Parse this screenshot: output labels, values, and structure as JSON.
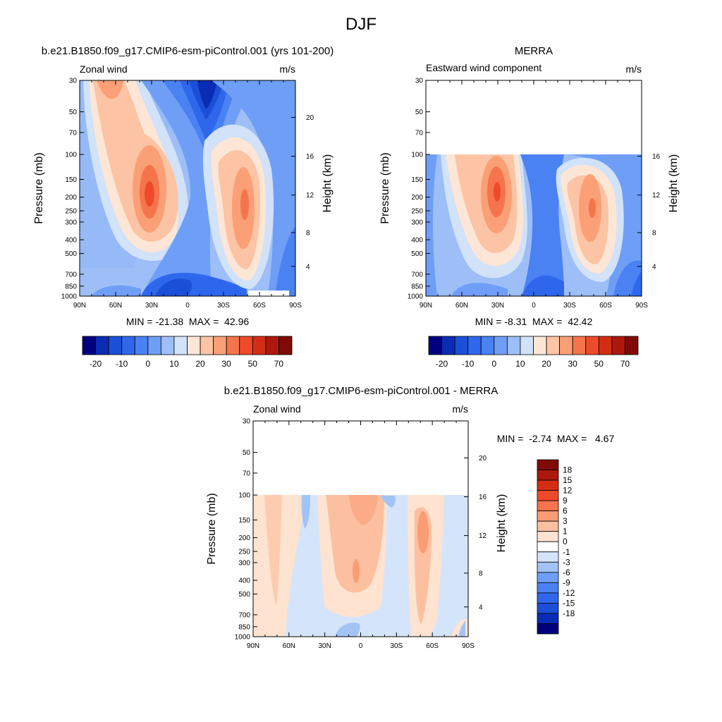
{
  "page_title": "DJF",
  "colors": {
    "model_obs_palette": [
      "#00007f",
      "#0a2cb5",
      "#1b4fd8",
      "#2f67ec",
      "#4a81f3",
      "#6f9ef7",
      "#9dbef7",
      "#d1e2f9",
      "#fde6d6",
      "#fcc3a4",
      "#fa9f76",
      "#f6744c",
      "#ee4a2a",
      "#d42d16",
      "#ae180c",
      "#7f0a07"
    ],
    "diff_palette": [
      "#00007f",
      "#0a2cb5",
      "#1b4fd8",
      "#2f67ec",
      "#4a81f3",
      "#6f9ef7",
      "#a3c3f5",
      "#d4e4fa",
      "#ffffff",
      "#fde3d0",
      "#fcc0a0",
      "#fa9d74",
      "#f6744c",
      "#ee4a2a",
      "#d42d16",
      "#ae180c",
      "#7f0a07"
    ]
  },
  "chart_data": [
    {
      "type": "heatmap",
      "title": "b.e21.B1850.f09_g17.CMIP6-esm-piControl.001 (yrs 101-200)",
      "left_string": "Zonal wind",
      "right_string": "m/s",
      "ylabel": "Pressure (mb)",
      "ylabel_right": "Height (km)",
      "x_ticks": [
        "90N",
        "60N",
        "30N",
        "0",
        "30S",
        "60S",
        "90S"
      ],
      "y_ticks": [
        "30",
        "50",
        "70",
        "100",
        "150",
        "200",
        "250",
        "300",
        "400",
        "500",
        "700",
        "850",
        "1000"
      ],
      "height_ticks": [
        "20",
        "16",
        "12",
        "8",
        "4"
      ],
      "top_pressure": 30,
      "min_max": "MIN = -21.38  MAX =  42.96",
      "colorbar_labels": [
        "-20",
        "-10",
        "0",
        "10",
        "20",
        "30",
        "50",
        "70"
      ],
      "features": [
        {
          "feature": "NH subtropical jet core",
          "lat": "30N",
          "pressure_mb": 200,
          "value": 42.96
        },
        {
          "feature": "SH westerly jet core",
          "lat": "45S",
          "pressure_mb": 250,
          "value": 35
        },
        {
          "feature": "stratospheric easterly minimum",
          "lat": "15S",
          "pressure_mb": 30,
          "value": -21.38
        },
        {
          "feature": "NH polar stratospheric westerlies",
          "lat": "65N",
          "pressure_mb": 30,
          "value": 30
        }
      ]
    },
    {
      "type": "heatmap",
      "title": "MERRA",
      "left_string": "Eastward wind component",
      "right_string": "m/s",
      "ylabel": "Pressure (mb)",
      "ylabel_right": "Height (km)",
      "x_ticks": [
        "90N",
        "60N",
        "30N",
        "0",
        "30S",
        "60S",
        "90S"
      ],
      "y_ticks": [
        "30",
        "50",
        "70",
        "100",
        "150",
        "200",
        "250",
        "300",
        "400",
        "500",
        "700",
        "850",
        "1000"
      ],
      "height_ticks": [
        "16",
        "12",
        "8",
        "4"
      ],
      "top_pressure": 100,
      "min_max": "MIN = -8.31  MAX =  42.42",
      "colorbar_labels": [
        "-20",
        "-10",
        "0",
        "10",
        "20",
        "30",
        "50",
        "70"
      ],
      "features": [
        {
          "feature": "NH subtropical jet core",
          "lat": "30N",
          "pressure_mb": 200,
          "value": 42.42
        },
        {
          "feature": "SH westerly jet core",
          "lat": "45S",
          "pressure_mb": 250,
          "value": 33
        },
        {
          "feature": "tropical easterlies",
          "lat": "5S",
          "pressure_mb": 150,
          "value": -8.31
        }
      ]
    },
    {
      "type": "heatmap",
      "title": "b.e21.B1850.f09_g17.CMIP6-esm-piControl.001 - MERRA",
      "left_string": "Zonal wind",
      "right_string": "m/s",
      "ylabel": "Pressure (mb)",
      "ylabel_right": "Height (km)",
      "x_ticks": [
        "90N",
        "60N",
        "30N",
        "0",
        "30S",
        "60S",
        "90S"
      ],
      "y_ticks": [
        "30",
        "50",
        "70",
        "100",
        "150",
        "200",
        "250",
        "300",
        "400",
        "500",
        "700",
        "850",
        "1000"
      ],
      "height_ticks": [
        "20",
        "16",
        "12",
        "8",
        "4"
      ],
      "top_pressure": 100,
      "min_max": "MIN =  -2.74  MAX =   4.67",
      "colorbar_labels": [
        "18",
        "15",
        "12",
        "9",
        "6",
        "3",
        "1",
        "0",
        "-1",
        "-3",
        "-6",
        "-9",
        "-12",
        "-15",
        "-18"
      ],
      "features": [
        {
          "feature": "positive difference band",
          "lat": "10N",
          "pressure_mb": 150,
          "value": 4.67
        },
        {
          "feature": "positive difference band",
          "lat": "50S",
          "pressure_mb": 180,
          "value": 4
        },
        {
          "feature": "negative difference",
          "lat": "20S",
          "pressure_mb": 850,
          "value": -2.74
        }
      ]
    }
  ]
}
